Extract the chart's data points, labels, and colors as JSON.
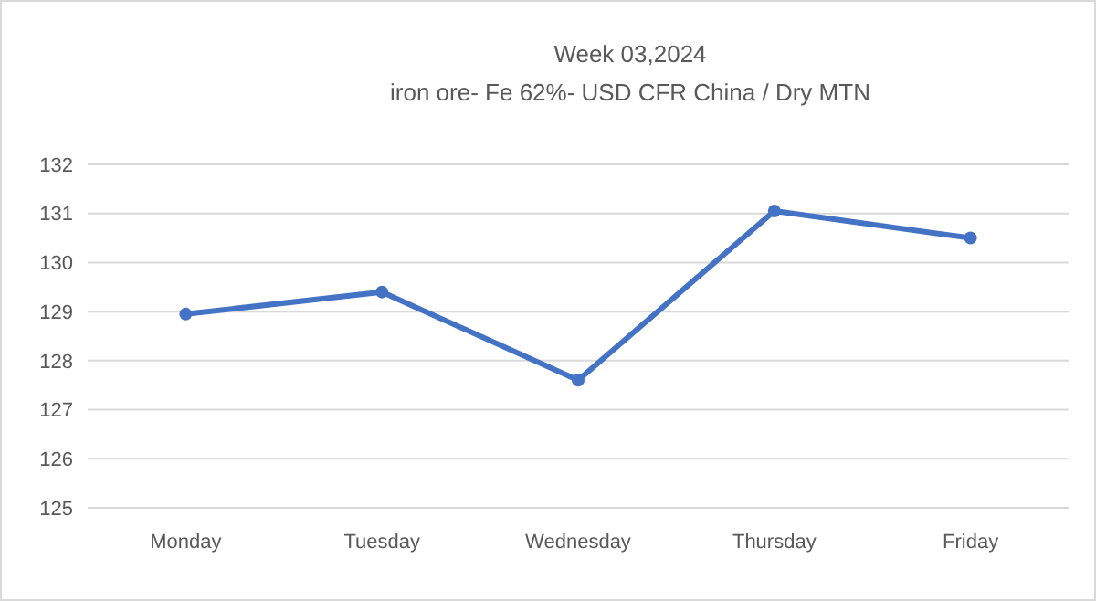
{
  "chart_data": {
    "type": "line",
    "title": "Week 03,2024",
    "subtitle": "iron ore- Fe 62%- USD CFR China / Dry MTN",
    "categories": [
      "Monday",
      "Tuesday",
      "Wednesday",
      "Thursday",
      "Friday"
    ],
    "series": [
      {
        "color": "#4472c4",
        "values": [
          128.95,
          129.4,
          127.6,
          131.05,
          130.5
        ]
      }
    ],
    "ylim": [
      125,
      132
    ],
    "yticks": [
      125,
      126,
      127,
      128,
      129,
      130,
      131,
      132
    ],
    "grid": "y",
    "marker": "circle",
    "line_style": "solid"
  }
}
